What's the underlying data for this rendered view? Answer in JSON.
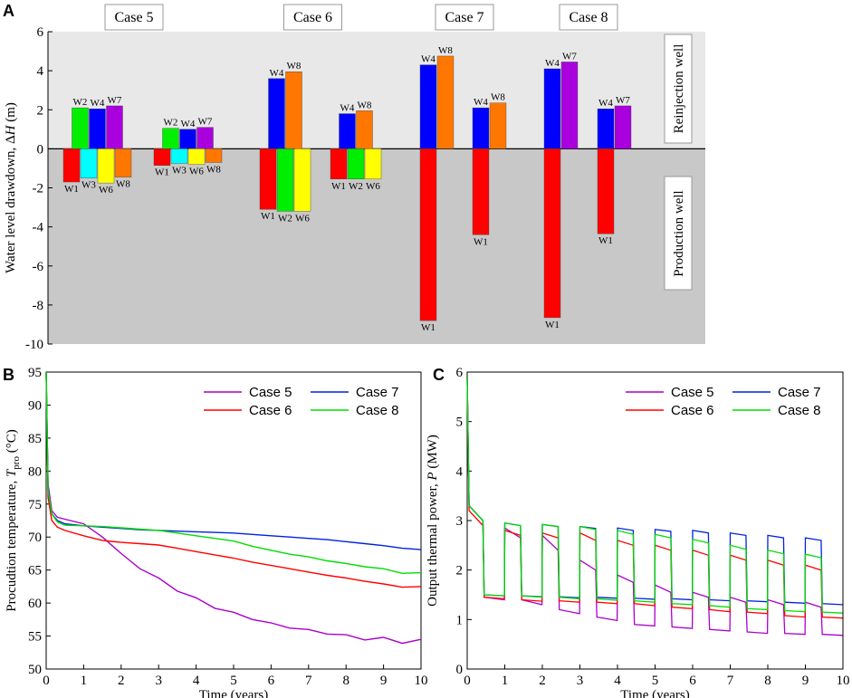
{
  "chart_data": [
    {
      "panel": "A",
      "type": "bar",
      "ylabel_prefix": "Water level drawdown, Δ",
      "ylabel_var": "H",
      "ylabel_unit": " (m)",
      "ylim": [
        -10,
        6
      ],
      "yticks": [
        "-10",
        "-8",
        "-6",
        "-4",
        "-2",
        "0",
        "2",
        "4",
        "6"
      ],
      "zone_top_label": "Reinjection well",
      "zone_bottom_label": "Production well",
      "colors": {
        "W1": "#ff0000",
        "W2": "#00ee00",
        "W3": "#00ffff",
        "W4": "#0000ff",
        "W6": "#ffff00",
        "W7": "#aa00dd",
        "W8": "#ff7700"
      },
      "groups": [
        {
          "label": "Case 5",
          "pos": [
            {
              "well": "W2",
              "value": 2.1
            },
            {
              "well": "W4",
              "value": 2.05
            },
            {
              "well": "W7",
              "value": 2.2
            }
          ],
          "neg": [
            {
              "well": "W1",
              "value": -1.7
            },
            {
              "well": "W3",
              "value": -1.5
            },
            {
              "well": "W6",
              "value": -1.75
            },
            {
              "well": "W8",
              "value": -1.45
            }
          ]
        },
        {
          "label": "",
          "pos": [
            {
              "well": "W2",
              "value": 1.05
            },
            {
              "well": "W4",
              "value": 1.0
            },
            {
              "well": "W7",
              "value": 1.1
            }
          ],
          "neg": [
            {
              "well": "W1",
              "value": -0.85
            },
            {
              "well": "W3",
              "value": -0.75
            },
            {
              "well": "W6",
              "value": -0.8
            },
            {
              "well": "W8",
              "value": -0.7
            }
          ]
        },
        {
          "label": "Case 6",
          "pos": [
            {
              "well": "W4",
              "value": 3.6
            },
            {
              "well": "W8",
              "value": 3.95
            }
          ],
          "neg": [
            {
              "well": "W1",
              "value": -3.1
            },
            {
              "well": "W2",
              "value": -3.2
            },
            {
              "well": "W6",
              "value": -3.2
            }
          ]
        },
        {
          "label": "",
          "pos": [
            {
              "well": "W4",
              "value": 1.8
            },
            {
              "well": "W8",
              "value": 1.95
            }
          ],
          "neg": [
            {
              "well": "W1",
              "value": -1.55
            },
            {
              "well": "W2",
              "value": -1.55
            },
            {
              "well": "W6",
              "value": -1.55
            }
          ]
        },
        {
          "label": "Case 7",
          "pos": [
            {
              "well": "W4",
              "value": 4.3
            },
            {
              "well": "W8",
              "value": 4.75
            }
          ],
          "neg": [
            {
              "well": "W1",
              "value": -8.8
            }
          ]
        },
        {
          "label": "",
          "pos": [
            {
              "well": "W4",
              "value": 2.1
            },
            {
              "well": "W8",
              "value": 2.35
            }
          ],
          "neg": [
            {
              "well": "W1",
              "value": -4.4
            }
          ]
        },
        {
          "label": "Case 8",
          "pos": [
            {
              "well": "W4",
              "value": 4.1
            },
            {
              "well": "W7",
              "value": 4.45
            }
          ],
          "neg": [
            {
              "well": "W1",
              "value": -8.65
            }
          ]
        },
        {
          "label": "",
          "pos": [
            {
              "well": "W4",
              "value": 2.05
            },
            {
              "well": "W7",
              "value": 2.2
            }
          ],
          "neg": [
            {
              "well": "W1",
              "value": -4.35
            }
          ]
        }
      ]
    },
    {
      "panel": "B",
      "type": "line",
      "xlabel": "Time (years)",
      "ylabel_prefix": "Procudtion temperature, ",
      "ylabel_var": "T",
      "ylabel_sub": "pro",
      "ylabel_unit": " (°C)",
      "xlim": [
        0,
        10
      ],
      "ylim": [
        50,
        95
      ],
      "xticks": [
        "0",
        "1",
        "2",
        "3",
        "4",
        "5",
        "6",
        "7",
        "8",
        "9",
        "10"
      ],
      "yticks": [
        "50",
        "55",
        "60",
        "65",
        "70",
        "75",
        "80",
        "85",
        "90",
        "95"
      ],
      "series": [
        {
          "name": "Case 5",
          "color": "#aa00cc",
          "x": [
            0,
            0.05,
            0.15,
            0.3,
            0.5,
            1,
            1.5,
            2,
            2.5,
            3,
            3.5,
            4,
            4.5,
            5,
            5.5,
            6,
            6.5,
            7,
            7.5,
            8,
            8.5,
            9,
            9.5,
            10
          ],
          "y": [
            95,
            78,
            74,
            73,
            72.7,
            72,
            70,
            67.5,
            65.2,
            63.8,
            61.8,
            60.8,
            59.2,
            58.6,
            57.5,
            57.0,
            56.2,
            56.0,
            55.3,
            55.2,
            54.4,
            54.8,
            53.9,
            54.5
          ]
        },
        {
          "name": "Case 6",
          "color": "#ff0000",
          "x": [
            0,
            0.05,
            0.15,
            0.3,
            0.5,
            1,
            1.5,
            2,
            2.5,
            3,
            3.5,
            4,
            4.5,
            5,
            5.5,
            6,
            6.5,
            7,
            7.5,
            8,
            8.5,
            9,
            9.5,
            10
          ],
          "y": [
            95,
            76,
            72.5,
            71.5,
            71,
            70.2,
            69.5,
            69.2,
            69.0,
            68.8,
            68.3,
            67.8,
            67.3,
            66.8,
            66.2,
            65.7,
            65.2,
            64.7,
            64.2,
            63.8,
            63.3,
            62.9,
            62.4,
            62.5
          ]
        },
        {
          "name": "Case 7",
          "color": "#0022dd",
          "x": [
            0,
            0.05,
            0.15,
            0.3,
            0.5,
            1,
            1.5,
            2,
            2.5,
            3,
            3.5,
            4,
            4.5,
            5,
            5.5,
            6,
            6.5,
            7,
            7.5,
            8,
            8.5,
            9,
            9.5,
            10
          ],
          "y": [
            95,
            77,
            73.5,
            72.5,
            72,
            71.7,
            71.5,
            71.3,
            71.1,
            71.0,
            70.9,
            70.8,
            70.7,
            70.6,
            70.4,
            70.2,
            70.0,
            69.8,
            69.6,
            69.3,
            69.0,
            68.7,
            68.3,
            68.1
          ]
        },
        {
          "name": "Case 8",
          "color": "#00dd00",
          "x": [
            0,
            0.05,
            0.15,
            0.3,
            0.5,
            1,
            1.5,
            2,
            2.5,
            3,
            3.5,
            4,
            4.5,
            5,
            5.5,
            6,
            6.5,
            7,
            7.5,
            8,
            8.5,
            9,
            9.5,
            10
          ],
          "y": [
            95,
            77,
            73.5,
            72.3,
            71.8,
            71.7,
            71.6,
            71.4,
            71.2,
            71.0,
            70.6,
            70.2,
            69.8,
            69.4,
            68.6,
            68.0,
            67.4,
            67.0,
            66.4,
            66.0,
            65.5,
            65.2,
            64.5,
            64.6
          ]
        }
      ],
      "legend_position": "top-right"
    },
    {
      "panel": "C",
      "type": "line",
      "xlabel": "Time (years)",
      "ylabel_prefix": "Output thermal power, ",
      "ylabel_var": "P",
      "ylabel_unit": " (MW)",
      "xlim": [
        0,
        10
      ],
      "ylim": [
        0,
        6
      ],
      "xticks": [
        "0",
        "1",
        "2",
        "3",
        "4",
        "5",
        "6",
        "7",
        "8",
        "9",
        "10"
      ],
      "yticks": [
        "0",
        "1",
        "2",
        "3",
        "4",
        "5",
        "6"
      ],
      "cycle": {
        "period": 1.0,
        "on_start": 0.0,
        "on_end": 0.42,
        "ramp": 0.03
      },
      "series": [
        {
          "name": "Case 5",
          "color": "#aa00cc",
          "on_start": [
            3.3,
            2.85,
            2.7,
            2.2,
            1.9,
            1.7,
            1.55,
            1.45,
            1.4,
            1.35
          ],
          "on_end": [
            3.0,
            2.65,
            2.4,
            2.0,
            1.75,
            1.55,
            1.45,
            1.35,
            1.3,
            1.25
          ],
          "off_start": [
            1.45,
            1.4,
            1.2,
            1.05,
            0.9,
            0.85,
            0.8,
            0.75,
            0.72,
            0.7
          ],
          "off_end": [
            1.4,
            1.3,
            1.12,
            0.98,
            0.87,
            0.82,
            0.77,
            0.72,
            0.7,
            0.68
          ]
        },
        {
          "name": "Case 6",
          "color": "#ff0000",
          "on_start": [
            3.2,
            2.8,
            2.75,
            2.75,
            2.6,
            2.5,
            2.4,
            2.3,
            2.2,
            2.1
          ],
          "on_end": [
            2.9,
            2.7,
            2.65,
            2.6,
            2.5,
            2.4,
            2.3,
            2.2,
            2.1,
            2.0
          ],
          "off_start": [
            1.45,
            1.4,
            1.38,
            1.35,
            1.32,
            1.25,
            1.2,
            1.15,
            1.08,
            1.05
          ],
          "off_end": [
            1.42,
            1.37,
            1.35,
            1.32,
            1.28,
            1.22,
            1.16,
            1.12,
            1.05,
            1.03
          ]
        },
        {
          "name": "Case 7",
          "color": "#0022dd",
          "on_start": [
            3.3,
            2.95,
            2.92,
            2.88,
            2.85,
            2.82,
            2.8,
            2.75,
            2.7,
            2.65
          ],
          "on_end": [
            3.0,
            2.9,
            2.88,
            2.84,
            2.8,
            2.78,
            2.75,
            2.7,
            2.65,
            2.6
          ],
          "off_start": [
            1.5,
            1.48,
            1.46,
            1.45,
            1.43,
            1.42,
            1.4,
            1.38,
            1.35,
            1.32
          ],
          "off_end": [
            1.48,
            1.46,
            1.44,
            1.43,
            1.41,
            1.4,
            1.38,
            1.36,
            1.33,
            1.3
          ]
        },
        {
          "name": "Case 8",
          "color": "#00dd00",
          "on_start": [
            3.3,
            2.95,
            2.92,
            2.88,
            2.8,
            2.72,
            2.62,
            2.5,
            2.4,
            2.32
          ],
          "on_end": [
            3.0,
            2.9,
            2.88,
            2.82,
            2.72,
            2.65,
            2.55,
            2.42,
            2.33,
            2.25
          ],
          "off_start": [
            1.5,
            1.48,
            1.45,
            1.42,
            1.38,
            1.32,
            1.28,
            1.22,
            1.18,
            1.15
          ],
          "off_end": [
            1.48,
            1.45,
            1.42,
            1.39,
            1.35,
            1.3,
            1.25,
            1.2,
            1.16,
            1.13
          ]
        }
      ],
      "legend_position": "top-right"
    }
  ]
}
